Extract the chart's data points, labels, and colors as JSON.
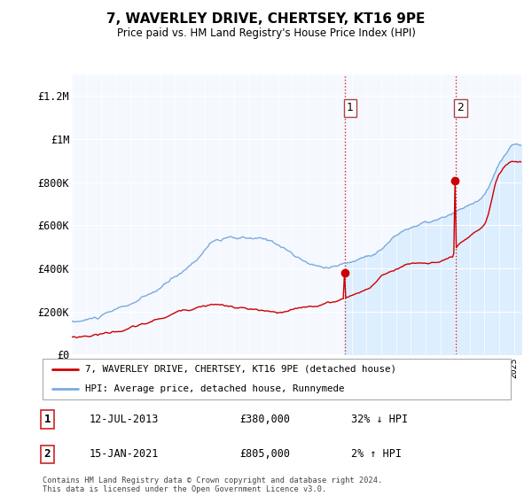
{
  "title": "7, WAVERLEY DRIVE, CHERTSEY, KT16 9PE",
  "subtitle": "Price paid vs. HM Land Registry's House Price Index (HPI)",
  "ylim": [
    0,
    1300000
  ],
  "yticks": [
    0,
    200000,
    400000,
    600000,
    800000,
    1000000,
    1200000
  ],
  "ytick_labels": [
    "£0",
    "£200K",
    "£400K",
    "£600K",
    "£800K",
    "£1M",
    "£1.2M"
  ],
  "background_color": "#ffffff",
  "plot_bg_color": "#f5f8ff",
  "legend_label_red": "7, WAVERLEY DRIVE, CHERTSEY, KT16 9PE (detached house)",
  "legend_label_blue": "HPI: Average price, detached house, Runnymede",
  "transaction1_date": "12-JUL-2013",
  "transaction1_price": "£380,000",
  "transaction1_hpi": "32% ↓ HPI",
  "transaction2_date": "15-JAN-2021",
  "transaction2_price": "£805,000",
  "transaction2_hpi": "2% ↑ HPI",
  "footnote": "Contains HM Land Registry data © Crown copyright and database right 2024.\nThis data is licensed under the Open Government Licence v3.0.",
  "red_color": "#cc0000",
  "blue_color": "#7aaadd",
  "blue_fill_color": "#ddeeff",
  "marker1_x": 2013.54,
  "marker2_x": 2021.04,
  "grid_color": "#d8dde8",
  "white_grid": "#ffffff"
}
